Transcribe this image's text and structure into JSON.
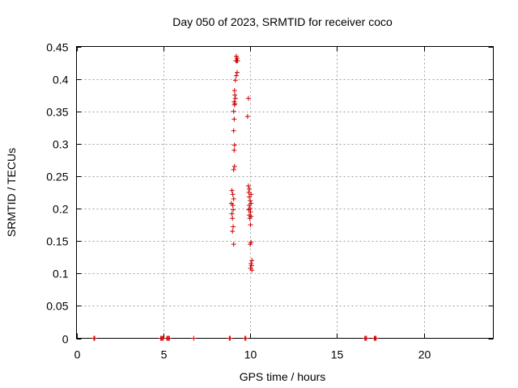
{
  "chart_data": {
    "type": "scatter",
    "title": "Day 050 of 2023, SRMTID for receiver coco",
    "xlabel": "GPS time / hours",
    "ylabel": "SRMTID / TECUs",
    "xlim": [
      0,
      24
    ],
    "ylim": [
      0,
      0.45
    ],
    "xticks": [
      0,
      5,
      10,
      15,
      20
    ],
    "yticks": [
      0,
      0.05,
      0.1,
      0.15,
      0.2,
      0.25,
      0.3,
      0.35,
      0.4,
      0.45
    ],
    "xtick_labels": [
      "0",
      "5",
      "10",
      "15",
      "20"
    ],
    "ytick_labels": [
      "0",
      "0.05",
      "0.1",
      "0.15",
      "0.2",
      "0.25",
      "0.3",
      "0.35",
      "0.4",
      "0.45"
    ],
    "grid": true,
    "marker": "+",
    "color": "#cc0000",
    "series": [
      {
        "name": "SRMTID",
        "points": [
          [
            1.0,
            0
          ],
          [
            1.05,
            0
          ],
          [
            4.85,
            0
          ],
          [
            4.9,
            0
          ],
          [
            4.95,
            0
          ],
          [
            5.0,
            0
          ],
          [
            5.2,
            0
          ],
          [
            5.25,
            0
          ],
          [
            5.3,
            0
          ],
          [
            5.35,
            0
          ],
          [
            6.75,
            0
          ],
          [
            8.8,
            0
          ],
          [
            8.85,
            0
          ],
          [
            9.7,
            0
          ],
          [
            9.75,
            0
          ],
          [
            16.6,
            0
          ],
          [
            16.65,
            0
          ],
          [
            16.7,
            0
          ],
          [
            17.15,
            0
          ],
          [
            17.2,
            0
          ],
          [
            17.25,
            0
          ],
          [
            9.2,
            0.435
          ],
          [
            9.25,
            0.432
          ],
          [
            9.22,
            0.428
          ],
          [
            9.18,
            0.428
          ],
          [
            9.28,
            0.428
          ],
          [
            9.25,
            0.41
          ],
          [
            9.2,
            0.405
          ],
          [
            9.15,
            0.398
          ],
          [
            9.1,
            0.382
          ],
          [
            9.12,
            0.375
          ],
          [
            9.15,
            0.37
          ],
          [
            9.08,
            0.365
          ],
          [
            9.12,
            0.362
          ],
          [
            9.1,
            0.36
          ],
          [
            9.05,
            0.35
          ],
          [
            9.08,
            0.338
          ],
          [
            9.05,
            0.32
          ],
          [
            9.1,
            0.298
          ],
          [
            9.08,
            0.29
          ],
          [
            9.1,
            0.265
          ],
          [
            9.05,
            0.26
          ],
          [
            8.95,
            0.228
          ],
          [
            9.0,
            0.222
          ],
          [
            9.05,
            0.215
          ],
          [
            8.92,
            0.208
          ],
          [
            9.0,
            0.205
          ],
          [
            9.02,
            0.198
          ],
          [
            8.95,
            0.192
          ],
          [
            8.98,
            0.185
          ],
          [
            9.02,
            0.172
          ],
          [
            8.98,
            0.165
          ],
          [
            9.05,
            0.145
          ],
          [
            9.9,
            0.37
          ],
          [
            9.85,
            0.342
          ],
          [
            9.9,
            0.235
          ],
          [
            9.95,
            0.23
          ],
          [
            9.92,
            0.225
          ],
          [
            10.05,
            0.222
          ],
          [
            9.95,
            0.218
          ],
          [
            10.0,
            0.212
          ],
          [
            10.05,
            0.208
          ],
          [
            9.95,
            0.205
          ],
          [
            10.0,
            0.2
          ],
          [
            9.92,
            0.198
          ],
          [
            10.02,
            0.195
          ],
          [
            9.95,
            0.19
          ],
          [
            10.05,
            0.188
          ],
          [
            9.98,
            0.185
          ],
          [
            10.02,
            0.175
          ],
          [
            10.05,
            0.148
          ],
          [
            10.0,
            0.145
          ],
          [
            10.1,
            0.12
          ],
          [
            10.05,
            0.115
          ],
          [
            10.08,
            0.112
          ],
          [
            10.02,
            0.108
          ],
          [
            10.1,
            0.105
          ]
        ]
      }
    ]
  }
}
